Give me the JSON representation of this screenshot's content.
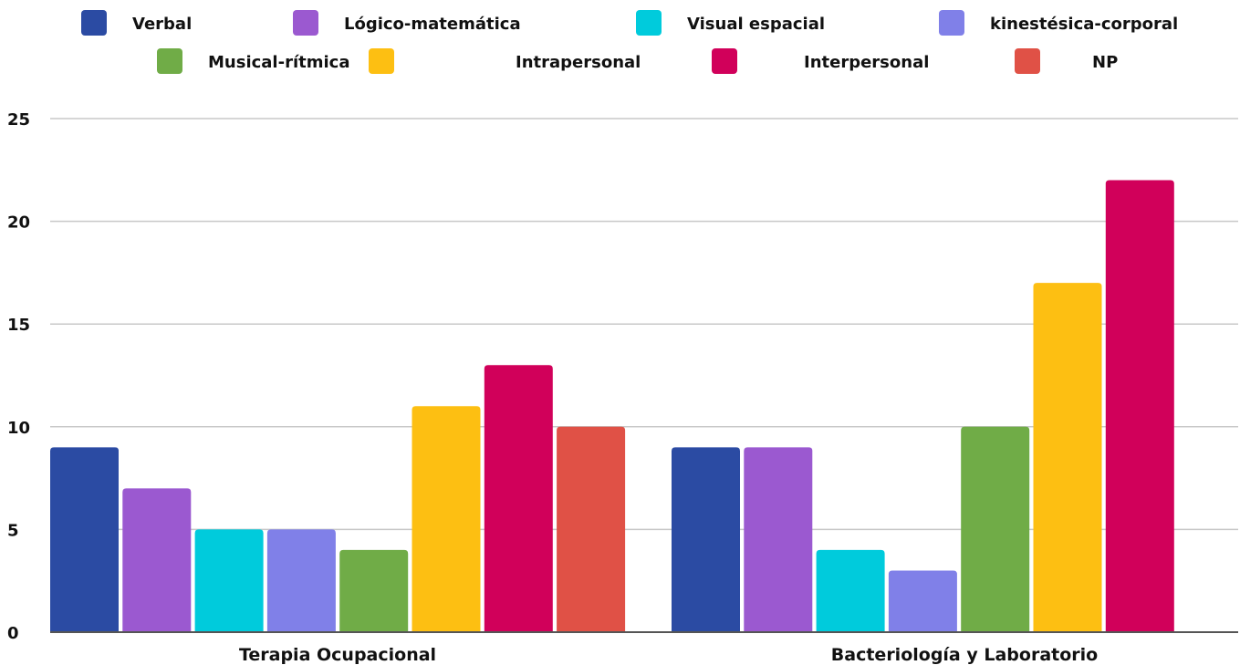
{
  "chart_data": {
    "type": "bar",
    "title": "",
    "xlabel": "",
    "ylabel": "",
    "categories": [
      "Terapia Ocupacional",
      "Bacteriología y Laboratorio"
    ],
    "series": [
      {
        "name": "Verbal",
        "color": "#2b4ba3",
        "values": [
          9,
          9
        ]
      },
      {
        "name": "Lógico-matemática",
        "color": "#9b59d0",
        "values": [
          7,
          9
        ]
      },
      {
        "name": "Visual espacial",
        "color": "#00cbdc",
        "values": [
          5,
          4
        ]
      },
      {
        "name": "kinestésica-corporal",
        "color": "#8080e8",
        "values": [
          5,
          3
        ]
      },
      {
        "name": "Musical-rítmica",
        "color": "#70ac47",
        "values": [
          4,
          10
        ]
      },
      {
        "name": "Intrapersonal",
        "color": "#fdbf12",
        "values": [
          11,
          17
        ]
      },
      {
        "name": "Interpersonal",
        "color": "#d1005a",
        "values": [
          13,
          22
        ]
      },
      {
        "name": "NP",
        "color": "#e05146",
        "values": [
          10,
          0
        ]
      }
    ],
    "ylim": [
      0,
      25
    ],
    "yticks": [
      "0",
      "5",
      "10",
      "15",
      "20",
      "25"
    ],
    "grid": true,
    "legend_position": "top"
  }
}
